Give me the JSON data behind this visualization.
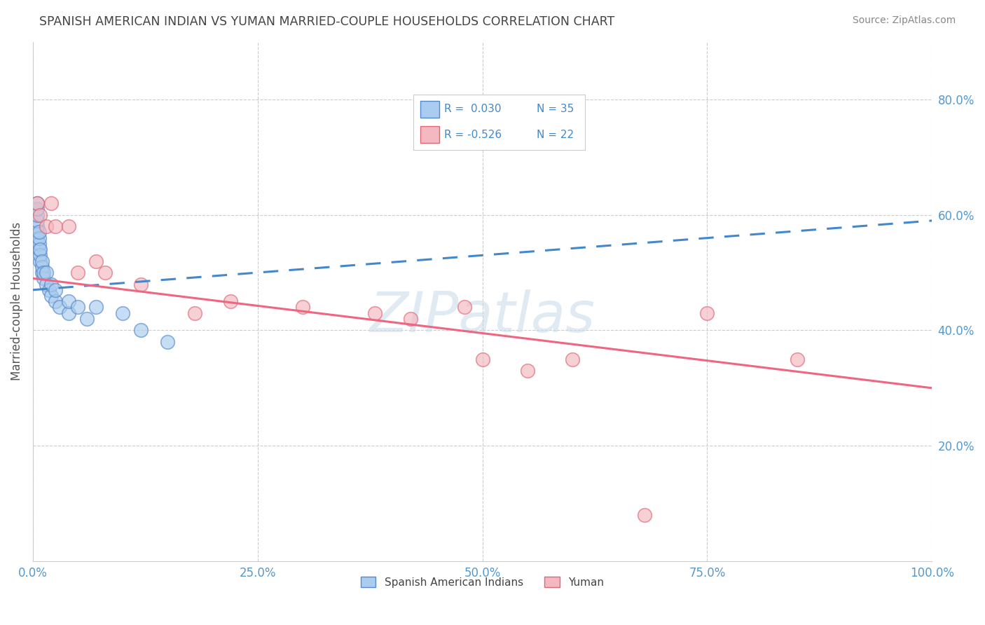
{
  "title": "SPANISH AMERICAN INDIAN VS YUMAN MARRIED-COUPLE HOUSEHOLDS CORRELATION CHART",
  "source": "Source: ZipAtlas.com",
  "ylabel": "Married-couple Households",
  "watermark": "ZIPatlas",
  "legend_blue_r": "R =  0.030",
  "legend_blue_n": "N = 35",
  "legend_pink_r": "R = -0.526",
  "legend_pink_n": "N = 22",
  "label_blue": "Spanish American Indians",
  "label_pink": "Yuman",
  "blue_scatter_x": [
    0.005,
    0.005,
    0.005,
    0.005,
    0.005,
    0.005,
    0.005,
    0.007,
    0.007,
    0.007,
    0.007,
    0.008,
    0.008,
    0.008,
    0.01,
    0.01,
    0.01,
    0.012,
    0.012,
    0.015,
    0.015,
    0.018,
    0.02,
    0.02,
    0.025,
    0.025,
    0.03,
    0.04,
    0.04,
    0.05,
    0.06,
    0.07,
    0.1,
    0.12,
    0.15
  ],
  "blue_scatter_y": [
    0.56,
    0.57,
    0.58,
    0.59,
    0.6,
    0.61,
    0.62,
    0.54,
    0.55,
    0.56,
    0.57,
    0.52,
    0.53,
    0.54,
    0.5,
    0.51,
    0.52,
    0.49,
    0.5,
    0.48,
    0.5,
    0.47,
    0.46,
    0.48,
    0.45,
    0.47,
    0.44,
    0.43,
    0.45,
    0.44,
    0.42,
    0.44,
    0.43,
    0.4,
    0.38
  ],
  "pink_scatter_x": [
    0.005,
    0.008,
    0.015,
    0.02,
    0.025,
    0.04,
    0.05,
    0.07,
    0.08,
    0.12,
    0.18,
    0.22,
    0.3,
    0.38,
    0.42,
    0.48,
    0.5,
    0.55,
    0.6,
    0.68,
    0.75,
    0.85
  ],
  "pink_scatter_y": [
    0.62,
    0.6,
    0.58,
    0.62,
    0.58,
    0.58,
    0.5,
    0.52,
    0.5,
    0.48,
    0.43,
    0.45,
    0.44,
    0.43,
    0.42,
    0.44,
    0.35,
    0.33,
    0.35,
    0.08,
    0.43,
    0.35
  ],
  "blue_line_x": [
    0.0,
    1.0
  ],
  "blue_line_y": [
    0.47,
    0.59
  ],
  "pink_line_x": [
    0.0,
    1.0
  ],
  "pink_line_y": [
    0.49,
    0.3
  ],
  "xlim": [
    0.0,
    1.0
  ],
  "ylim": [
    0.0,
    0.9
  ],
  "xtick_vals": [
    0.0,
    0.25,
    0.5,
    0.75,
    1.0
  ],
  "xtick_labels": [
    "0.0%",
    "25.0%",
    "50.0%",
    "75.0%",
    "100.0%"
  ],
  "ytick_vals": [
    0.2,
    0.4,
    0.6,
    0.8
  ],
  "ytick_labels": [
    "20.0%",
    "40.0%",
    "60.0%",
    "80.0%"
  ],
  "grid_color": "#cccccc",
  "background_color": "#ffffff",
  "blue_fill_color": "#aaccee",
  "pink_fill_color": "#f4b8c0",
  "blue_edge_color": "#5588cc",
  "pink_edge_color": "#dd6677",
  "blue_line_color": "#4488cc",
  "pink_line_color": "#ee6680",
  "title_color": "#444444",
  "source_color": "#888888",
  "ylabel_color": "#555555",
  "tick_color": "#5599cc",
  "watermark_color": "#c8daea",
  "legend_box_color": "#cccccc"
}
